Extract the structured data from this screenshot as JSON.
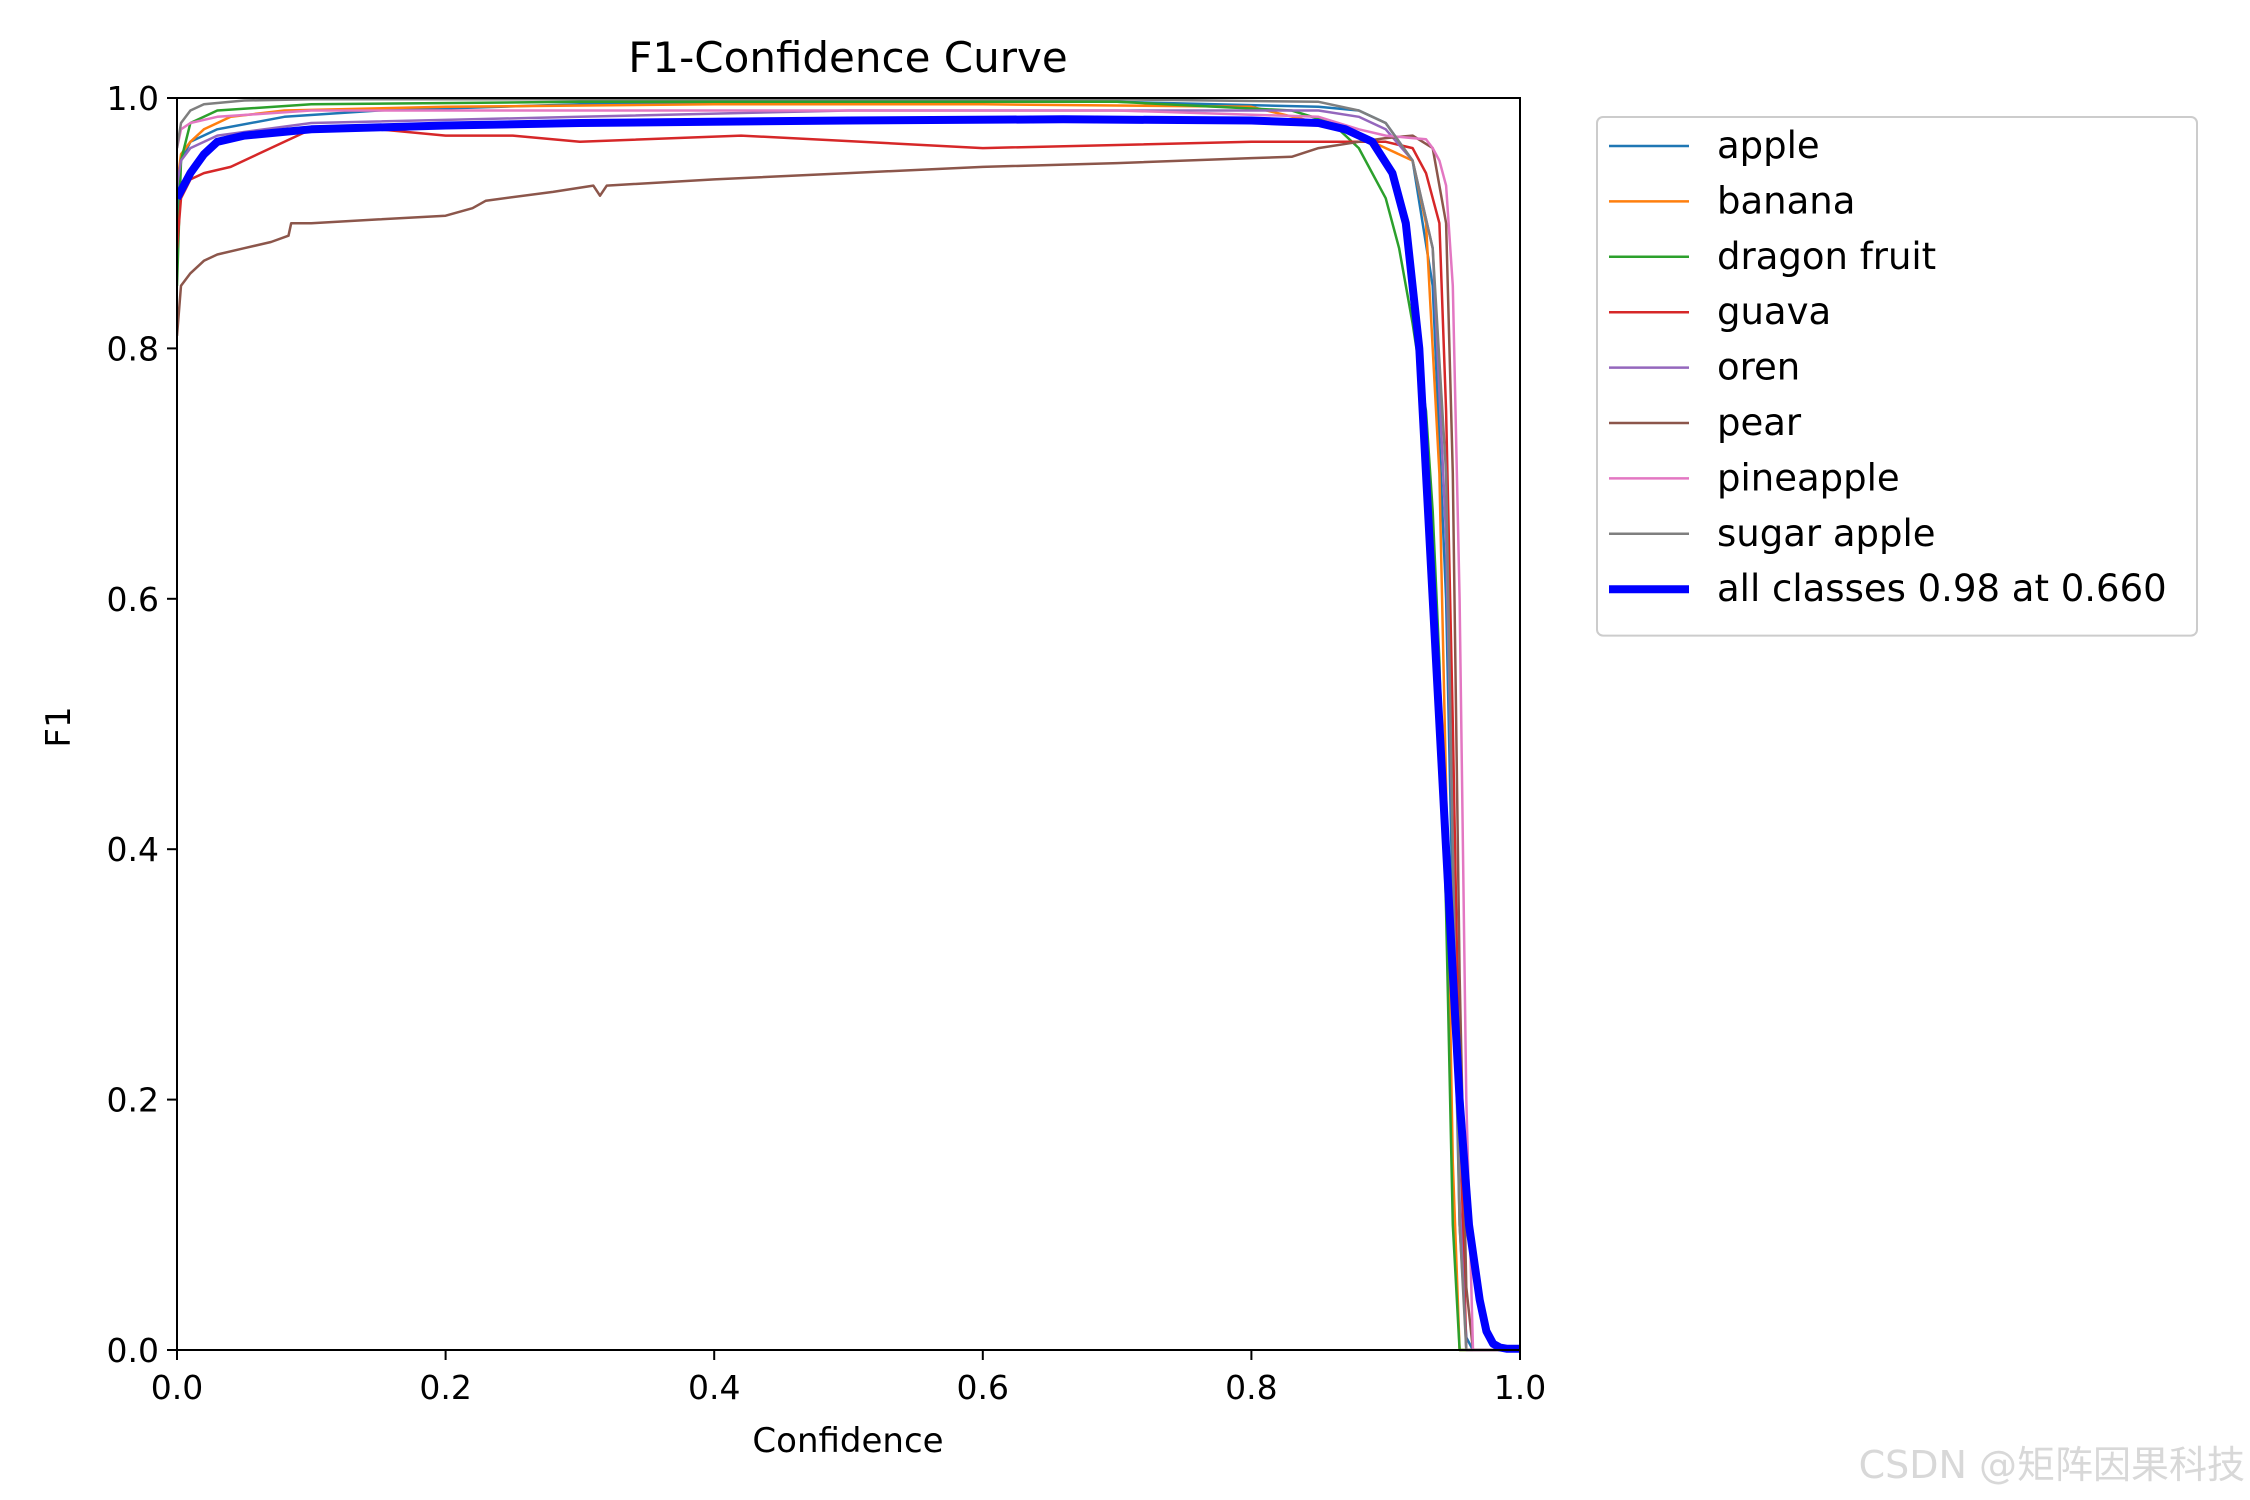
{
  "chart_data": {
    "type": "line",
    "title": "F1-Confidence Curve",
    "xlabel": "Confidence",
    "ylabel": "F1",
    "xlim": [
      0.0,
      1.0
    ],
    "ylim": [
      0.0,
      1.0
    ],
    "xticks": [
      "0.0",
      "0.2",
      "0.4",
      "0.6",
      "0.8",
      "1.0"
    ],
    "yticks": [
      "0.0",
      "0.2",
      "0.4",
      "0.6",
      "0.8",
      "1.0"
    ],
    "grid": false,
    "legend_position": "outside-right-top",
    "series": [
      {
        "name": "apple",
        "color": "#1f77b4",
        "bold": false,
        "x": [
          0,
          0.003,
          0.01,
          0.03,
          0.08,
          0.15,
          0.3,
          0.5,
          0.7,
          0.85,
          0.88,
          0.9,
          0.92,
          0.935,
          0.945,
          0.95,
          0.955,
          0.96,
          0.965,
          1.0
        ],
        "y": [
          0.9,
          0.95,
          0.965,
          0.975,
          0.985,
          0.99,
          0.995,
          0.997,
          0.997,
          0.993,
          0.99,
          0.98,
          0.95,
          0.85,
          0.6,
          0.35,
          0.1,
          0.01,
          0,
          0
        ]
      },
      {
        "name": "banana",
        "color": "#ff7f0e",
        "bold": false,
        "x": [
          0,
          0.003,
          0.01,
          0.02,
          0.04,
          0.08,
          0.2,
          0.4,
          0.6,
          0.8,
          0.85,
          0.88,
          0.9,
          0.92,
          0.93,
          0.94,
          0.945,
          0.95,
          0.955,
          1.0
        ],
        "y": [
          0.93,
          0.955,
          0.965,
          0.975,
          0.985,
          0.99,
          0.993,
          0.995,
          0.995,
          0.993,
          0.98,
          0.97,
          0.96,
          0.95,
          0.9,
          0.7,
          0.45,
          0.15,
          0,
          0
        ]
      },
      {
        "name": "dragon fruit",
        "color": "#2ca02c",
        "bold": false,
        "x": [
          0,
          0.003,
          0.01,
          0.03,
          0.1,
          0.3,
          0.5,
          0.7,
          0.83,
          0.86,
          0.88,
          0.9,
          0.91,
          0.92,
          0.93,
          0.935,
          0.94,
          0.945,
          0.95,
          0.955,
          0.96,
          1.0
        ],
        "y": [
          0.85,
          0.95,
          0.98,
          0.99,
          0.995,
          0.997,
          0.997,
          0.997,
          0.99,
          0.98,
          0.96,
          0.92,
          0.88,
          0.82,
          0.75,
          0.67,
          0.55,
          0.35,
          0.1,
          0,
          0,
          0
        ]
      },
      {
        "name": "guava",
        "color": "#d62728",
        "bold": false,
        "x": [
          0,
          0.003,
          0.01,
          0.02,
          0.04,
          0.06,
          0.08,
          0.1,
          0.15,
          0.2,
          0.25,
          0.3,
          0.42,
          0.6,
          0.8,
          0.9,
          0.92,
          0.93,
          0.94,
          0.945,
          0.95,
          0.955,
          0.96,
          1.0
        ],
        "y": [
          0.88,
          0.92,
          0.935,
          0.94,
          0.945,
          0.955,
          0.965,
          0.975,
          0.975,
          0.97,
          0.97,
          0.965,
          0.97,
          0.96,
          0.965,
          0.965,
          0.96,
          0.94,
          0.9,
          0.75,
          0.5,
          0.2,
          0,
          0
        ]
      },
      {
        "name": "oren",
        "color": "#9467bd",
        "bold": false,
        "x": [
          0,
          0.003,
          0.01,
          0.03,
          0.1,
          0.3,
          0.5,
          0.7,
          0.85,
          0.88,
          0.9,
          0.92,
          0.935,
          0.945,
          0.95,
          0.955,
          0.96,
          1.0
        ],
        "y": [
          0.93,
          0.95,
          0.96,
          0.97,
          0.98,
          0.985,
          0.99,
          0.99,
          0.99,
          0.985,
          0.975,
          0.95,
          0.88,
          0.65,
          0.4,
          0.12,
          0,
          0
        ]
      },
      {
        "name": "pear",
        "color": "#8c564b",
        "bold": false,
        "x": [
          0,
          0.003,
          0.01,
          0.02,
          0.03,
          0.05,
          0.07,
          0.083,
          0.085,
          0.1,
          0.15,
          0.2,
          0.22,
          0.23,
          0.28,
          0.31,
          0.315,
          0.32,
          0.4,
          0.5,
          0.6,
          0.7,
          0.8,
          0.83,
          0.85,
          0.88,
          0.9,
          0.92,
          0.935,
          0.945,
          0.95,
          0.955,
          0.96,
          0.965,
          1.0
        ],
        "y": [
          0.81,
          0.85,
          0.86,
          0.87,
          0.875,
          0.88,
          0.885,
          0.89,
          0.9,
          0.9,
          0.903,
          0.906,
          0.912,
          0.918,
          0.925,
          0.93,
          0.922,
          0.93,
          0.935,
          0.94,
          0.945,
          0.948,
          0.952,
          0.953,
          0.96,
          0.965,
          0.968,
          0.97,
          0.96,
          0.9,
          0.7,
          0.3,
          0.05,
          0,
          0
        ]
      },
      {
        "name": "pineapple",
        "color": "#e377c2",
        "bold": false,
        "x": [
          0,
          0.003,
          0.01,
          0.03,
          0.1,
          0.3,
          0.5,
          0.7,
          0.85,
          0.88,
          0.9,
          0.92,
          0.93,
          0.935,
          0.94,
          0.945,
          0.95,
          0.955,
          0.96,
          0.965,
          1.0
        ],
        "y": [
          0.96,
          0.975,
          0.98,
          0.985,
          0.99,
          0.99,
          0.99,
          0.99,
          0.985,
          0.975,
          0.97,
          0.968,
          0.967,
          0.96,
          0.95,
          0.93,
          0.85,
          0.6,
          0.2,
          0,
          0
        ]
      },
      {
        "name": "sugar apple",
        "color": "#7f7f7f",
        "bold": false,
        "x": [
          0,
          0.003,
          0.01,
          0.02,
          0.05,
          0.1,
          0.3,
          0.5,
          0.7,
          0.85,
          0.88,
          0.9,
          0.92,
          0.935,
          0.945,
          0.95,
          0.955,
          0.96,
          1.0
        ],
        "y": [
          0.96,
          0.98,
          0.99,
          0.995,
          0.998,
          0.999,
          0.999,
          0.999,
          0.999,
          0.997,
          0.99,
          0.98,
          0.95,
          0.88,
          0.7,
          0.4,
          0.1,
          0,
          0
        ]
      },
      {
        "name": "all classes 0.98 at 0.660",
        "color": "#0000ff",
        "bold": true,
        "x": [
          0,
          0.005,
          0.01,
          0.02,
          0.03,
          0.05,
          0.1,
          0.2,
          0.3,
          0.5,
          0.66,
          0.8,
          0.85,
          0.87,
          0.89,
          0.905,
          0.915,
          0.925,
          0.935,
          0.945,
          0.955,
          0.962,
          0.97,
          0.975,
          0.98,
          0.985,
          0.99,
          1.0
        ],
        "y": [
          0.92,
          0.93,
          0.94,
          0.955,
          0.965,
          0.97,
          0.975,
          0.978,
          0.98,
          0.982,
          0.983,
          0.982,
          0.98,
          0.975,
          0.965,
          0.94,
          0.9,
          0.8,
          0.6,
          0.4,
          0.2,
          0.1,
          0.04,
          0.015,
          0.005,
          0.002,
          0.001,
          0.001
        ]
      }
    ]
  },
  "watermark": "CSDN @矩阵因果科技"
}
